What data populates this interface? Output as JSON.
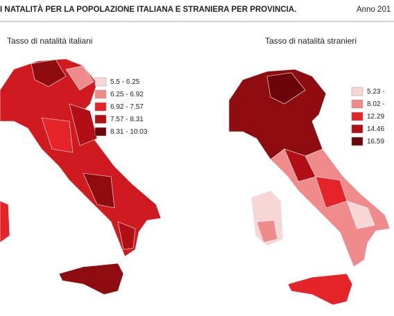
{
  "header": {
    "title": "I NATALITÀ PER LA POPOLAZIONE ITALIANA E STRANIERA PER PROVINCIA.",
    "subtitle": "Anno 201"
  },
  "maps": [
    {
      "title": "Tasso di natalità italiani",
      "legend": [
        {
          "label": "5.5 - 6.25",
          "color": "#f7d6d6"
        },
        {
          "label": "6.25 - 6.92",
          "color": "#f08b8b"
        },
        {
          "label": "6.92 - 7.57",
          "color": "#e5242a"
        },
        {
          "label": "7.57 - 8.31",
          "color": "#b10f15"
        },
        {
          "label": "8.31 - 10.03",
          "color": "#6b0509"
        }
      ]
    },
    {
      "title": "Tasso di natalità  stranieri",
      "legend": [
        {
          "label": "5.23 -",
          "color": "#f7d6d6"
        },
        {
          "label": "8.02 -",
          "color": "#f08b8b"
        },
        {
          "label": "12.29",
          "color": "#e5242a"
        },
        {
          "label": "14.46",
          "color": "#b10f15"
        },
        {
          "label": "16.59",
          "color": "#6b0509"
        }
      ]
    }
  ]
}
